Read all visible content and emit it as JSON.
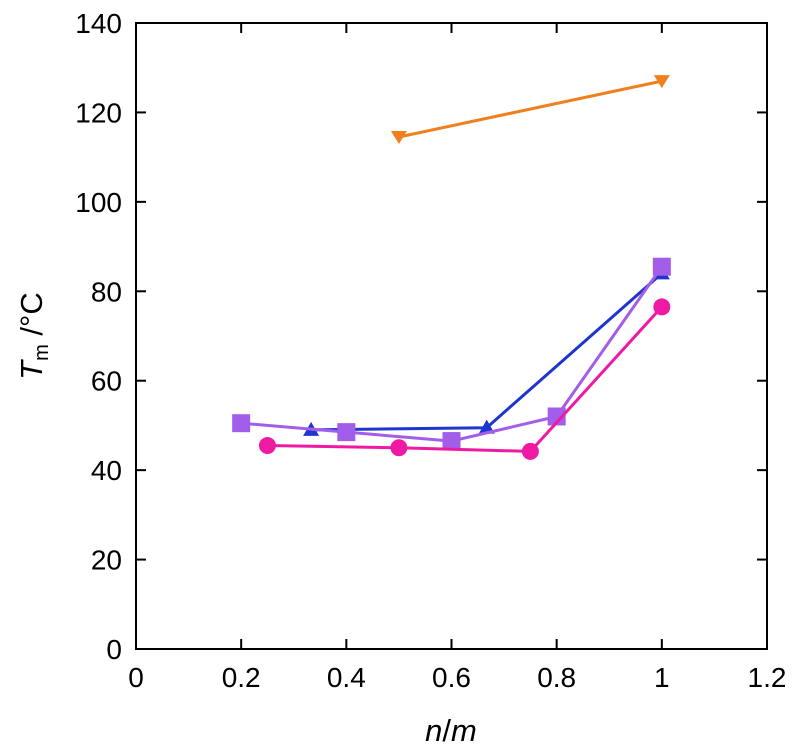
{
  "chart_data": {
    "type": "line",
    "xlabel": "n/m",
    "ylabel": "Tm /°C",
    "xlim": [
      0,
      1.2
    ],
    "ylim": [
      0,
      140
    ],
    "xticks": [
      "0",
      "0.2",
      "0.4",
      "0.6",
      "0.8",
      "1",
      "1.2"
    ],
    "yticks": [
      "0",
      "20",
      "40",
      "60",
      "80",
      "100",
      "120",
      "140"
    ],
    "grid": false,
    "series": [
      {
        "marker": "triangle-down",
        "color": "#f07f1e",
        "x": [
          0.5,
          1.0
        ],
        "y": [
          114.5,
          127.0
        ]
      },
      {
        "marker": "triangle-up",
        "color": "#2035d0",
        "x": [
          0.333,
          0.667,
          1.0
        ],
        "y": [
          49.0,
          49.5,
          84.0
        ]
      },
      {
        "marker": "square",
        "color": "#a25ee8",
        "x": [
          0.2,
          0.4,
          0.6,
          0.8,
          1.0
        ],
        "y": [
          50.5,
          48.5,
          46.5,
          52.0,
          85.5
        ]
      },
      {
        "marker": "circle",
        "color": "#ee1aa4",
        "x": [
          0.25,
          0.5,
          0.75,
          1.0
        ],
        "y": [
          45.5,
          45.0,
          44.2,
          76.5
        ]
      }
    ]
  }
}
